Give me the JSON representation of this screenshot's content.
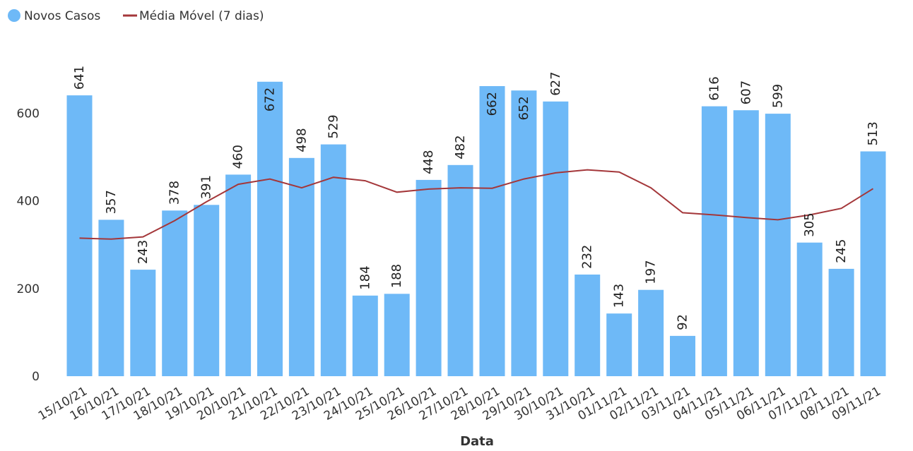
{
  "chart_data": {
    "type": "bar",
    "xlabel": "Data",
    "ylabel": "",
    "ylim": [
      0,
      700
    ],
    "yticks": [
      0,
      200,
      400,
      600
    ],
    "grid": false,
    "legend_position": "top-left",
    "categories": [
      "15/10/21",
      "16/10/21",
      "17/10/21",
      "18/10/21",
      "19/10/21",
      "20/10/21",
      "21/10/21",
      "22/10/21",
      "23/10/21",
      "24/10/21",
      "25/10/21",
      "26/10/21",
      "27/10/21",
      "28/10/21",
      "29/10/21",
      "30/10/21",
      "31/10/21",
      "01/11/21",
      "02/11/21",
      "03/11/21",
      "04/11/21",
      "05/11/21",
      "06/11/21",
      "07/11/21",
      "08/11/21",
      "09/11/21"
    ],
    "series": [
      {
        "name": "Novos Casos",
        "type": "bar",
        "color": "#6EB9F7",
        "values": [
          641,
          357,
          243,
          378,
          391,
          460,
          672,
          498,
          529,
          184,
          188,
          448,
          482,
          662,
          652,
          627,
          232,
          143,
          197,
          92,
          616,
          607,
          599,
          305,
          245,
          513
        ]
      },
      {
        "name": "Média Móvel (7 dias)",
        "type": "line",
        "color": "#A4373A",
        "values": [
          315,
          313,
          318,
          355,
          398,
          438,
          450,
          430,
          454,
          446,
          420,
          427,
          430,
          429,
          450,
          464,
          471,
          466,
          430,
          373,
          368,
          362,
          357,
          368,
          383,
          428
        ]
      }
    ]
  }
}
